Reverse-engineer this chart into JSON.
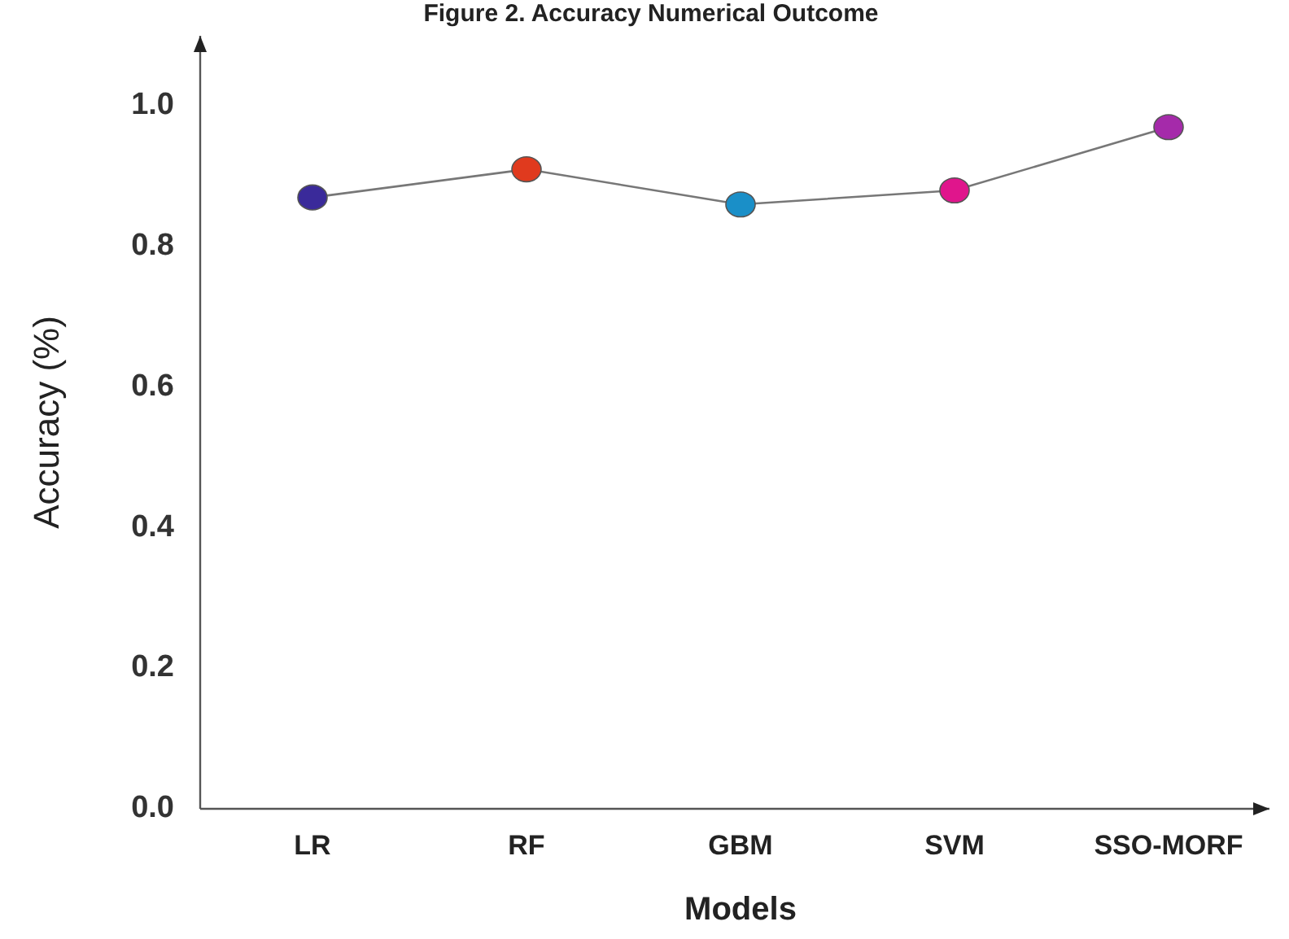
{
  "chart_data": {
    "type": "line",
    "title": "Figure 2. Accuracy Numerical Outcome",
    "xlabel": "Models",
    "ylabel": "Accuracy (%)",
    "categories": [
      "LR",
      "RF",
      "GBM",
      "SVM",
      "SSO-MORF"
    ],
    "series": [
      {
        "color": "#777777",
        "colors": [
          "#3a2a9a",
          "#e03a1e",
          "#1a8fc8",
          "#e0158c",
          "#a52aaa"
        ],
        "values": [
          0.87,
          0.91,
          0.86,
          0.88,
          0.97
        ]
      }
    ],
    "ylim": [
      0,
      1.1
    ],
    "yticks": [
      {
        "value": 0,
        "label": "0.0"
      },
      0.2,
      0.4,
      0.6,
      0.8,
      {
        "value": 1,
        "label": "1.0"
      }
    ],
    "grid": false,
    "marker": "circle",
    "line_style": "solid"
  }
}
